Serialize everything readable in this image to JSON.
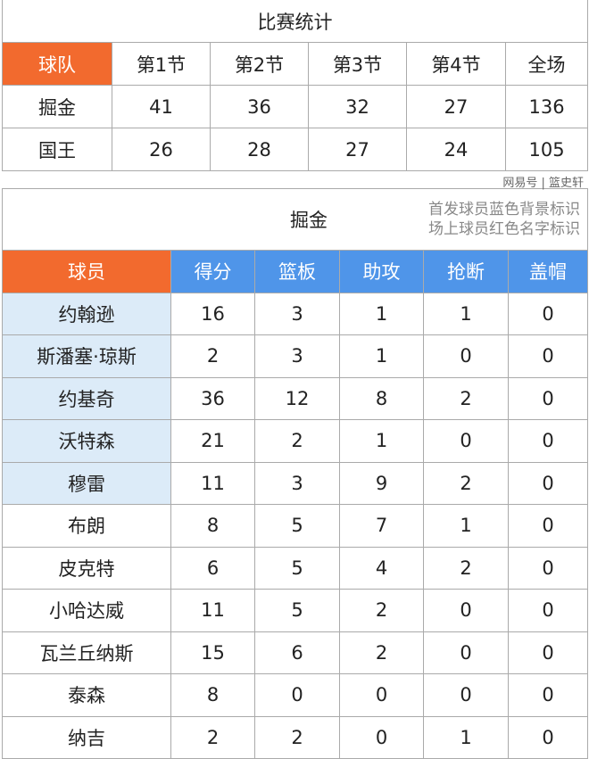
{
  "summary": {
    "title": "比赛统计",
    "headers": [
      "球队",
      "第1节",
      "第2节",
      "第3节",
      "第4节",
      "全场"
    ],
    "rows": [
      [
        "掘金",
        "41",
        "36",
        "32",
        "27",
        "136"
      ],
      [
        "国王",
        "26",
        "28",
        "27",
        "24",
        "105"
      ]
    ]
  },
  "box": {
    "team": "掘金",
    "note1": "首发球员蓝色背景标识",
    "note2": "场上球员红色名字标识",
    "headers": [
      "球员",
      "得分",
      "篮板",
      "助攻",
      "抢断",
      "盖帽"
    ],
    "rows": [
      [
        "约翰逊",
        "16",
        "3",
        "1",
        "1",
        "0"
      ],
      [
        "斯潘塞·琼斯",
        "2",
        "3",
        "1",
        "0",
        "0"
      ],
      [
        "约基奇",
        "36",
        "12",
        "8",
        "2",
        "0"
      ],
      [
        "沃特森",
        "21",
        "2",
        "1",
        "0",
        "0"
      ],
      [
        "穆雷",
        "11",
        "3",
        "9",
        "2",
        "0"
      ],
      [
        "布朗",
        "8",
        "5",
        "7",
        "1",
        "0"
      ],
      [
        "皮克特",
        "6",
        "5",
        "4",
        "2",
        "0"
      ],
      [
        "小哈达威",
        "11",
        "5",
        "2",
        "0",
        "0"
      ],
      [
        "瓦兰丘纳斯",
        "15",
        "6",
        "2",
        "0",
        "0"
      ],
      [
        "泰森",
        "8",
        "0",
        "0",
        "0",
        "0"
      ],
      [
        "纳吉",
        "2",
        "2",
        "0",
        "1",
        "0"
      ]
    ],
    "starters": 5
  },
  "watermark": "网易号 | 篮史轩",
  "colors": {
    "header_orange": "#f26a2e",
    "header_blue": "#4f95e9",
    "starter_bg": "#dcebf8"
  }
}
